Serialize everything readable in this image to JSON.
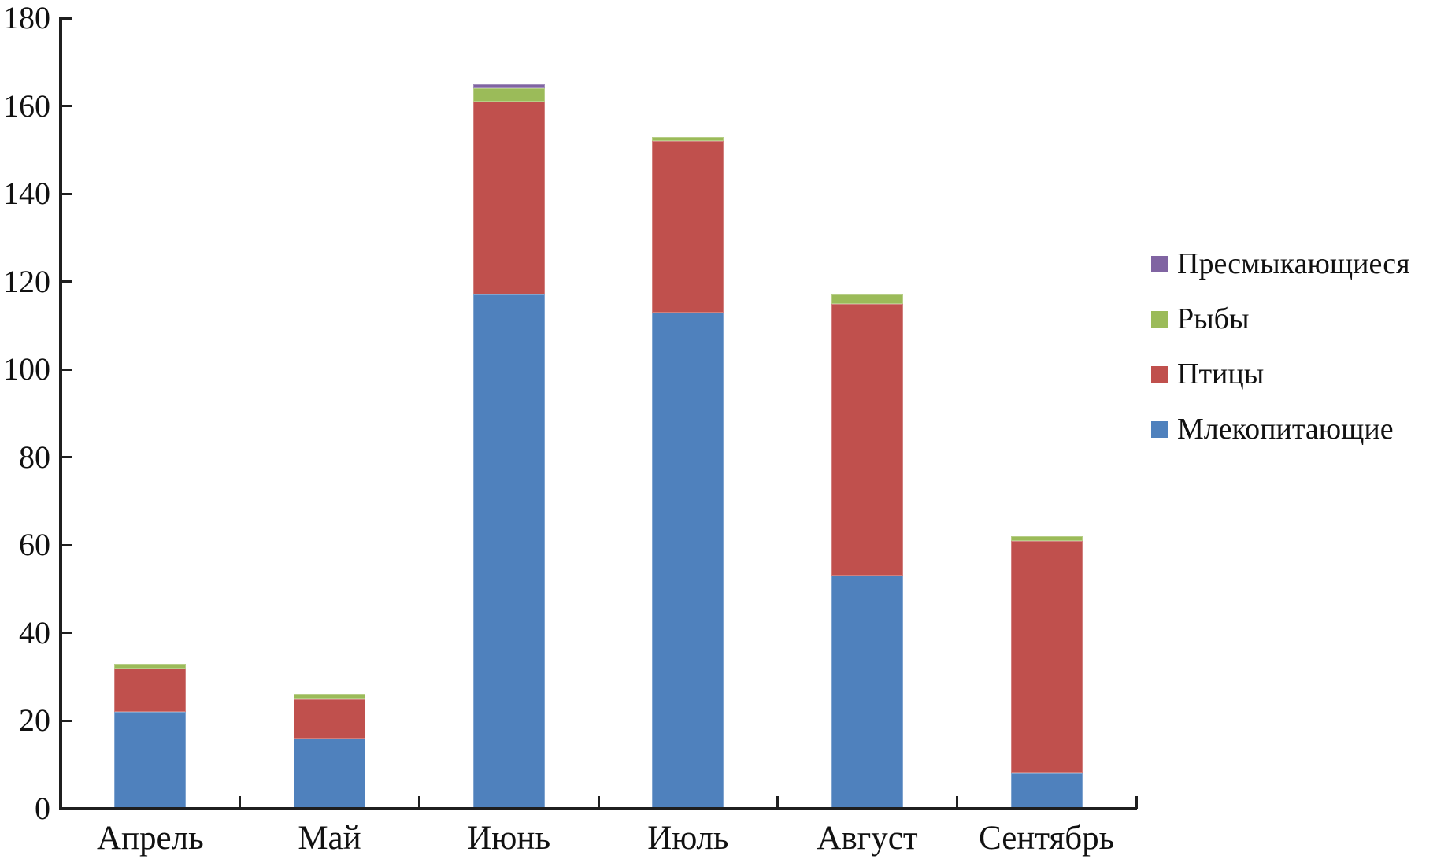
{
  "chart_data": {
    "type": "bar",
    "stacked": true,
    "title": "",
    "xlabel": "",
    "ylabel": "",
    "categories": [
      "Апрель",
      "Май",
      "Июнь",
      "Июль",
      "Август",
      "Сентябрь"
    ],
    "series": [
      {
        "name": "Млекопитающие",
        "color": "#4F81BD",
        "values": [
          22,
          16,
          117,
          113,
          53,
          8
        ]
      },
      {
        "name": "Птицы",
        "color": "#C0504D",
        "values": [
          10,
          9,
          44,
          39,
          62,
          53
        ]
      },
      {
        "name": "Рыбы",
        "color": "#9BBB59",
        "values": [
          1,
          1,
          3,
          1,
          2,
          1
        ]
      },
      {
        "name": "Пресмыкающиеся",
        "color": "#8064A2",
        "values": [
          0,
          0,
          1,
          0,
          0,
          0
        ]
      }
    ],
    "ylim": [
      0,
      180
    ],
    "ytick_step": 20,
    "ytick_labels": [
      "0",
      "20",
      "40",
      "60",
      "80",
      "100",
      "120",
      "140",
      "160",
      "180"
    ],
    "grid": false,
    "legend_position": "right",
    "legend_order": [
      "Пресмыкающиеся",
      "Рыбы",
      "Птицы",
      "Млекопитающие"
    ],
    "axis_color": "#1f1f1f",
    "text_color": "#111111"
  }
}
